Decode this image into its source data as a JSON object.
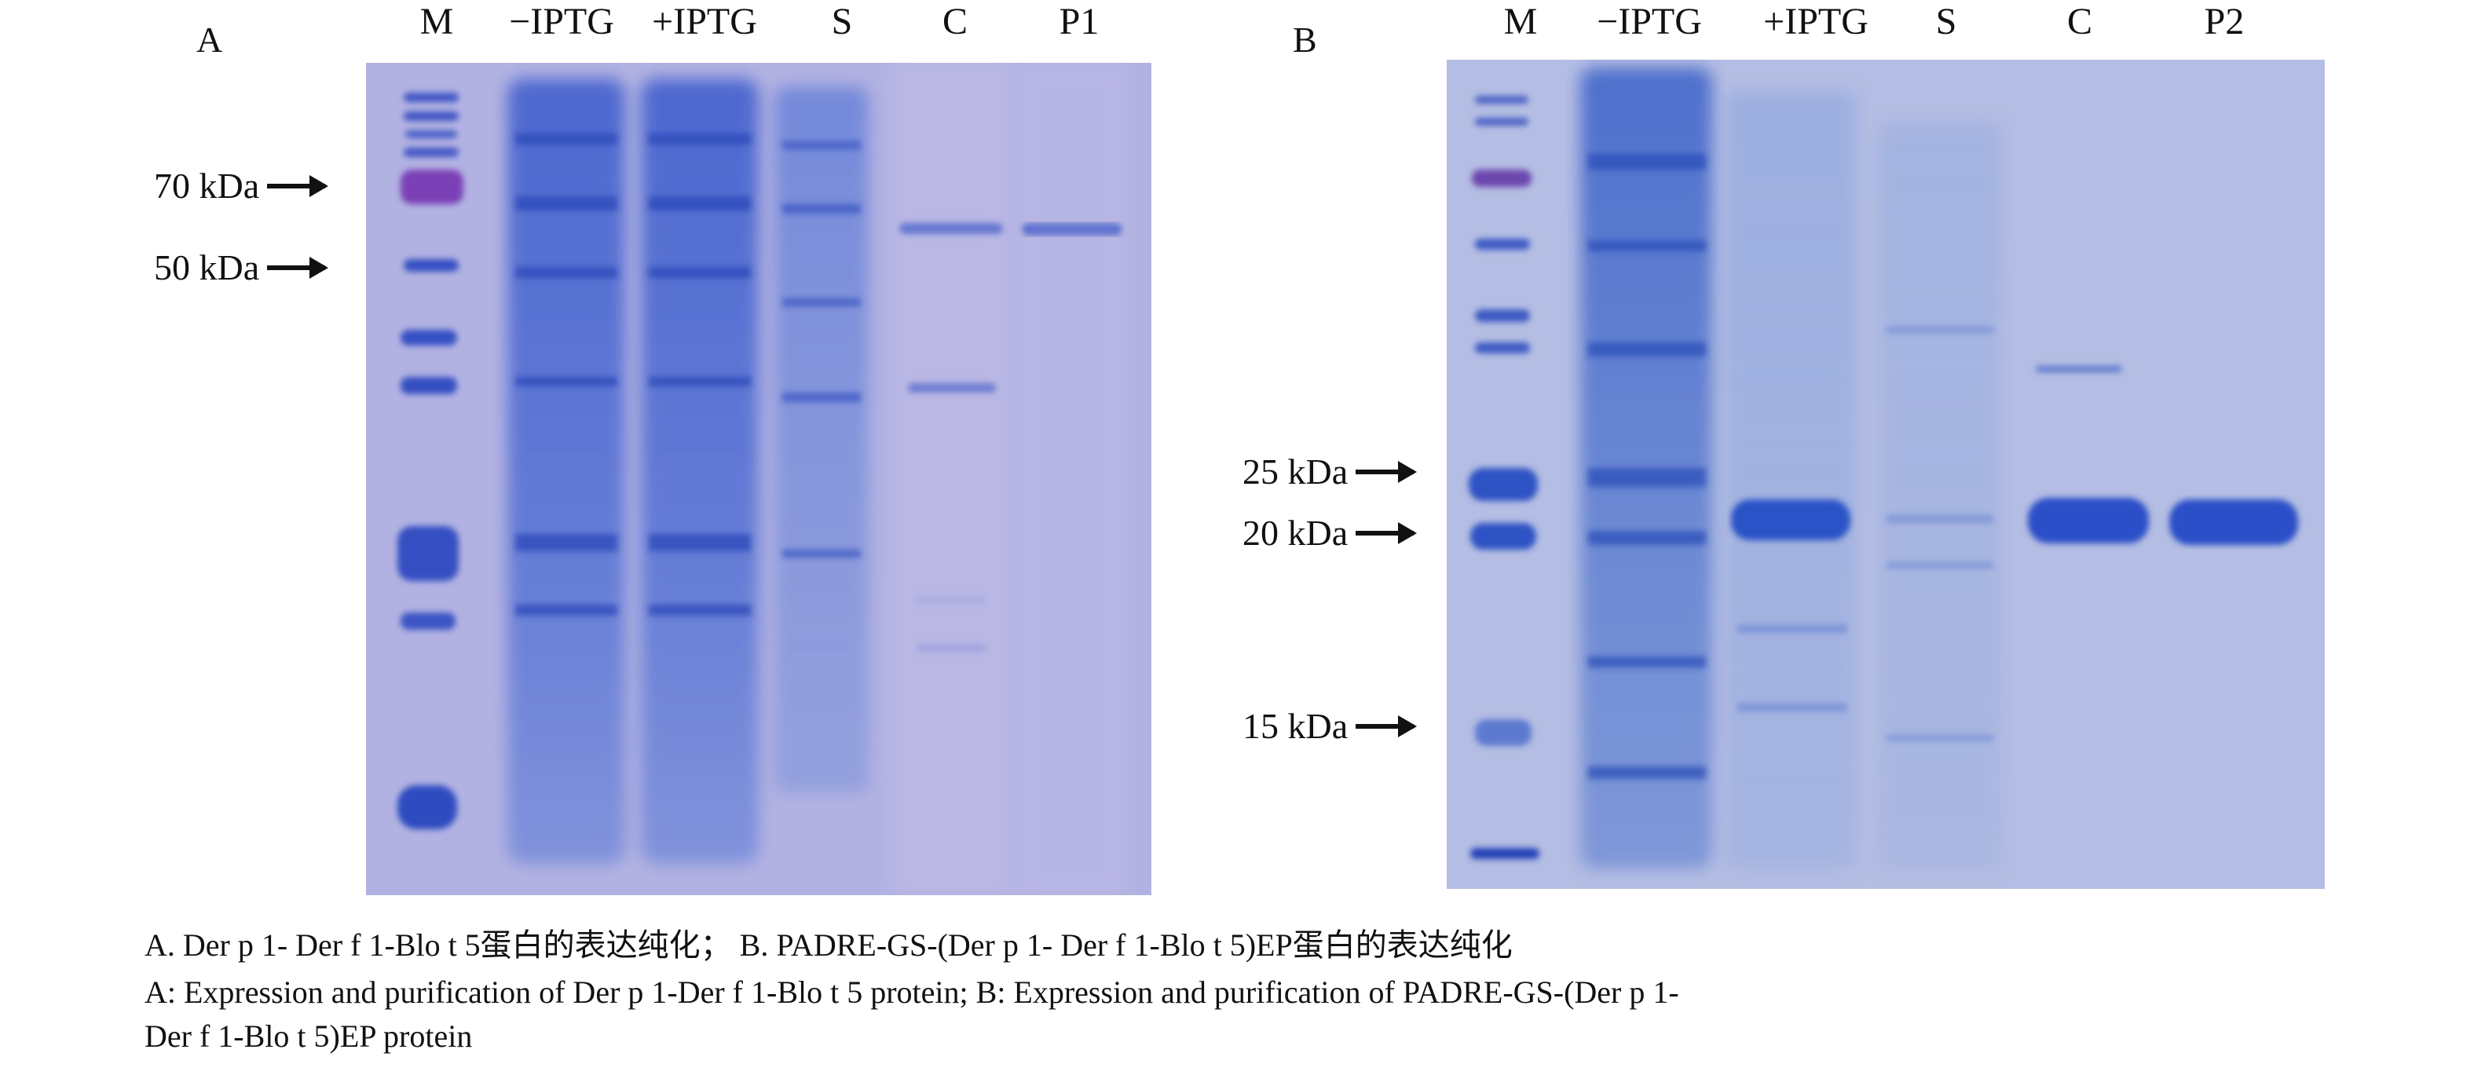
{
  "panelA": {
    "letter": "A",
    "lanes": [
      "M",
      "−IPTG",
      "+IPTG",
      "S",
      "C",
      "P1"
    ],
    "markers": [
      "70 kDa",
      "50 kDa"
    ]
  },
  "panelB": {
    "letter": "B",
    "lanes": [
      "M",
      "−IPTG",
      "+IPTG",
      "S",
      "C",
      "P2"
    ],
    "markers": [
      "25 kDa",
      "20 kDa",
      "15 kDa"
    ]
  },
  "caption": {
    "line1": "A. Der p 1- Der f 1-Blo t 5蛋白的表达纯化； B. PADRE-GS-(Der p 1- Der f 1-Blo t 5)EP蛋白的表达纯化",
    "line2": "A: Expression and purification of Der p 1-Der f 1-Blo t 5 protein; B: Expression and purification of PADRE-GS-(Der p 1-",
    "line3": "Der f 1-Blo t 5)EP protein"
  },
  "colors": {
    "gelA": "#aeb0e0",
    "gelB": "#b4bde3",
    "band": "#3a5fd0",
    "bandDark": "#2746b8",
    "marker70": "#7b3fb6"
  }
}
